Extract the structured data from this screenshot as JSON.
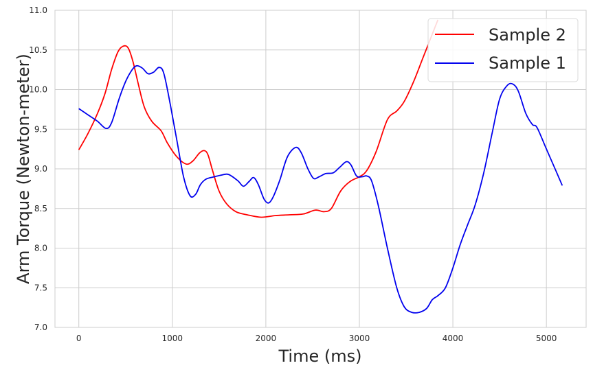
{
  "chart_data": {
    "type": "line",
    "title": "",
    "xlabel": "Time (ms)",
    "ylabel": "Arm Torque (Newton-meter)",
    "xlim": [
      -255,
      5425
    ],
    "ylim": [
      7.0,
      11.0
    ],
    "xticks": [
      0,
      1000,
      2000,
      3000,
      4000,
      5000
    ],
    "xtick_labels": [
      "0",
      "1000",
      "2000",
      "3000",
      "4000",
      "5000"
    ],
    "yticks": [
      7.0,
      7.5,
      8.0,
      8.5,
      9.0,
      9.5,
      10.0,
      10.5,
      11.0
    ],
    "ytick_labels": [
      "7.0",
      "7.5",
      "8.0",
      "8.5",
      "9.0",
      "9.5",
      "10.0",
      "10.5",
      "11.0"
    ],
    "grid": true,
    "legend_position": "top-right",
    "series": [
      {
        "name": "Sample 2",
        "color": "#ff0000",
        "points": [
          [
            0,
            9.24
          ],
          [
            100,
            9.45
          ],
          [
            200,
            9.7
          ],
          [
            280,
            9.95
          ],
          [
            350,
            10.25
          ],
          [
            420,
            10.48
          ],
          [
            480,
            10.55
          ],
          [
            530,
            10.52
          ],
          [
            580,
            10.35
          ],
          [
            640,
            10.05
          ],
          [
            700,
            9.78
          ],
          [
            780,
            9.6
          ],
          [
            880,
            9.48
          ],
          [
            950,
            9.32
          ],
          [
            1050,
            9.15
          ],
          [
            1150,
            9.06
          ],
          [
            1220,
            9.1
          ],
          [
            1290,
            9.2
          ],
          [
            1340,
            9.23
          ],
          [
            1380,
            9.18
          ],
          [
            1430,
            8.98
          ],
          [
            1500,
            8.72
          ],
          [
            1580,
            8.56
          ],
          [
            1680,
            8.46
          ],
          [
            1800,
            8.42
          ],
          [
            1950,
            8.39
          ],
          [
            2100,
            8.41
          ],
          [
            2250,
            8.42
          ],
          [
            2400,
            8.43
          ],
          [
            2530,
            8.48
          ],
          [
            2620,
            8.46
          ],
          [
            2700,
            8.5
          ],
          [
            2800,
            8.72
          ],
          [
            2900,
            8.84
          ],
          [
            3000,
            8.9
          ],
          [
            3080,
            8.98
          ],
          [
            3180,
            9.22
          ],
          [
            3300,
            9.62
          ],
          [
            3400,
            9.73
          ],
          [
            3480,
            9.85
          ],
          [
            3580,
            10.1
          ],
          [
            3680,
            10.4
          ],
          [
            3780,
            10.7
          ],
          [
            3840,
            10.88
          ]
        ]
      },
      {
        "name": "Sample 1",
        "color": "#0000ee",
        "points": [
          [
            0,
            9.76
          ],
          [
            100,
            9.68
          ],
          [
            200,
            9.6
          ],
          [
            290,
            9.51
          ],
          [
            350,
            9.58
          ],
          [
            430,
            9.88
          ],
          [
            500,
            10.1
          ],
          [
            570,
            10.25
          ],
          [
            620,
            10.3
          ],
          [
            680,
            10.27
          ],
          [
            740,
            10.2
          ],
          [
            800,
            10.22
          ],
          [
            860,
            10.28
          ],
          [
            910,
            10.2
          ],
          [
            980,
            9.8
          ],
          [
            1050,
            9.35
          ],
          [
            1120,
            8.9
          ],
          [
            1190,
            8.66
          ],
          [
            1250,
            8.68
          ],
          [
            1300,
            8.8
          ],
          [
            1360,
            8.87
          ],
          [
            1450,
            8.9
          ],
          [
            1520,
            8.92
          ],
          [
            1600,
            8.93
          ],
          [
            1700,
            8.85
          ],
          [
            1760,
            8.78
          ],
          [
            1820,
            8.84
          ],
          [
            1870,
            8.89
          ],
          [
            1920,
            8.8
          ],
          [
            1980,
            8.62
          ],
          [
            2030,
            8.57
          ],
          [
            2080,
            8.65
          ],
          [
            2150,
            8.86
          ],
          [
            2230,
            9.15
          ],
          [
            2320,
            9.27
          ],
          [
            2380,
            9.2
          ],
          [
            2450,
            9.0
          ],
          [
            2510,
            8.88
          ],
          [
            2570,
            8.9
          ],
          [
            2640,
            8.94
          ],
          [
            2720,
            8.95
          ],
          [
            2790,
            9.02
          ],
          [
            2860,
            9.09
          ],
          [
            2910,
            9.05
          ],
          [
            2970,
            8.91
          ],
          [
            3030,
            8.9
          ],
          [
            3080,
            8.91
          ],
          [
            3130,
            8.85
          ],
          [
            3200,
            8.55
          ],
          [
            3300,
            8.0
          ],
          [
            3400,
            7.5
          ],
          [
            3480,
            7.26
          ],
          [
            3560,
            7.19
          ],
          [
            3640,
            7.19
          ],
          [
            3720,
            7.24
          ],
          [
            3780,
            7.35
          ],
          [
            3840,
            7.4
          ],
          [
            3920,
            7.5
          ],
          [
            4000,
            7.75
          ],
          [
            4080,
            8.05
          ],
          [
            4160,
            8.3
          ],
          [
            4240,
            8.55
          ],
          [
            4330,
            8.95
          ],
          [
            4420,
            9.45
          ],
          [
            4500,
            9.88
          ],
          [
            4580,
            10.05
          ],
          [
            4640,
            10.07
          ],
          [
            4700,
            9.98
          ],
          [
            4780,
            9.7
          ],
          [
            4850,
            9.56
          ],
          [
            4900,
            9.52
          ],
          [
            5000,
            9.25
          ],
          [
            5100,
            8.98
          ],
          [
            5170,
            8.79
          ]
        ]
      }
    ]
  }
}
